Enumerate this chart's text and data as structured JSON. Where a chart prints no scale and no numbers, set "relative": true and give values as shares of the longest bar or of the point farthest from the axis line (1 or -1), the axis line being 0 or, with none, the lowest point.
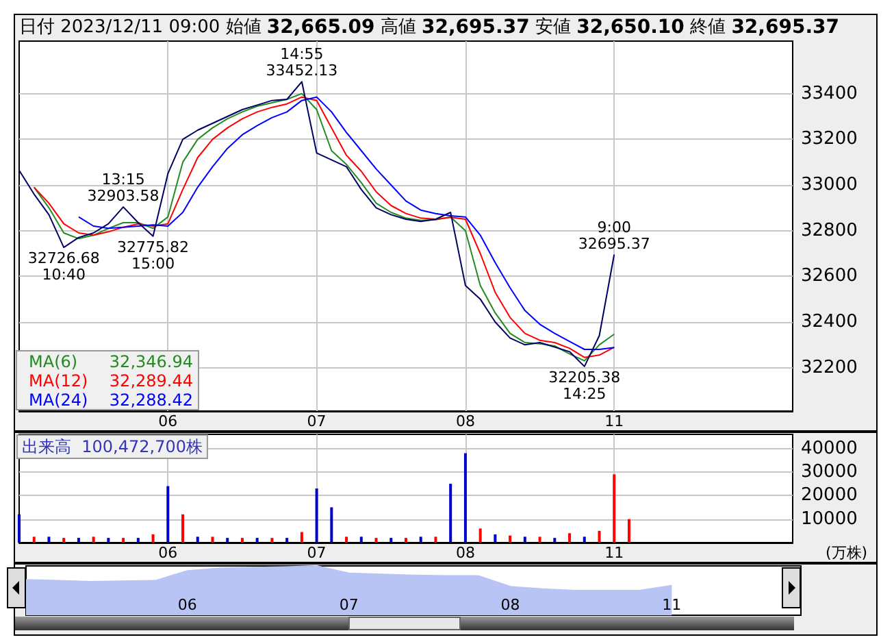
{
  "chart_data": [
    {
      "type": "line",
      "title": "日付 2023/12/11 09:00 始値 32,665.09 高値 32,695.37 安値 32,650.10 終値 32,695.37",
      "annotations": [
        "32,346.94",
        "32,289.44",
        "32,288.42",
        {
          "text": "32726.68\n10:40",
          "y": 32726.68
        },
        {
          "text": "13:15\n32903.58",
          "y": 32903.58
        },
        {
          "text": "32775.82\n15:00",
          "y": 32775.82
        },
        {
          "text": "14:55\n33452.13",
          "y": 33452.13
        },
        {
          "text": "32205.38\n14:25",
          "y": 32205.38
        },
        {
          "text": "9:00\n32695.37",
          "y": 32695.37
        }
      ],
      "categories": [
        null,
        null,
        null,
        null,
        null,
        null,
        null,
        null,
        null,
        null,
        "06",
        null,
        null,
        null,
        null,
        null,
        null,
        null,
        null,
        null,
        "07",
        null,
        null,
        null,
        null,
        null,
        null,
        null,
        null,
        null,
        "08",
        null,
        null,
        null,
        null,
        null,
        null,
        null,
        null,
        null,
        "11",
        null,
        null,
        null,
        null,
        null,
        null,
        null,
        null,
        null,
        null,
        null,
        null
      ],
      "series": [
        {
          "color": "#000066",
          "values": [
            33064,
            32960,
            32870,
            32726.68,
            32770,
            32790,
            32830,
            32903.58,
            32835,
            32775.82,
            33050,
            33200,
            33240,
            33270,
            33300,
            33330,
            33350,
            33370,
            33375,
            33452.13,
            33140,
            33110,
            33080,
            32980,
            32900,
            32870,
            32850,
            32840,
            32850,
            32880,
            32560,
            32500,
            32400,
            32330,
            32300,
            32310,
            32290,
            32270,
            32205.38,
            32340,
            32695.37,
            null,
            null,
            null,
            null,
            null,
            null,
            null,
            null,
            null,
            null,
            null,
            null
          ]
        },
        {
          "name": "MA(6)",
          "color": "#228b22",
          "values": [
            null,
            32990,
            32900,
            32790,
            32765,
            32780,
            32810,
            32835,
            32835,
            32810,
            32860,
            33100,
            33200,
            33250,
            33290,
            33320,
            33345,
            33360,
            33375,
            33400,
            33330,
            33150,
            33090,
            33010,
            32920,
            32880,
            32855,
            32845,
            32848,
            32860,
            32800,
            32560,
            32440,
            32350,
            32310,
            32305,
            32295,
            32260,
            32230,
            32300,
            32346.94,
            null,
            null,
            null,
            null,
            null,
            null,
            null,
            null,
            null,
            null,
            null,
            null
          ]
        },
        {
          "name": "MA(12)",
          "color": "#ff0000",
          "values": [
            null,
            32990,
            32920,
            32830,
            32790,
            32780,
            32795,
            32815,
            32830,
            32820,
            32830,
            32980,
            33120,
            33200,
            33250,
            33290,
            33320,
            33340,
            33355,
            33385,
            33370,
            33250,
            33130,
            33060,
            32970,
            32910,
            32875,
            32855,
            32850,
            32858,
            32850,
            32700,
            32530,
            32420,
            32350,
            32320,
            32310,
            32285,
            32245,
            32255,
            32289.44,
            null,
            null,
            null,
            null,
            null,
            null,
            null,
            null,
            null,
            null,
            null,
            null
          ]
        },
        {
          "name": "MA(24)",
          "color": "#0000ff",
          "values": [
            null,
            null,
            null,
            null,
            32860,
            32820,
            32810,
            32815,
            32820,
            32825,
            32820,
            32880,
            32990,
            33080,
            33160,
            33220,
            33260,
            33295,
            33320,
            33370,
            33385,
            33320,
            33230,
            33150,
            33070,
            33000,
            32930,
            32890,
            32875,
            32865,
            32860,
            32780,
            32660,
            32550,
            32450,
            32390,
            32350,
            32315,
            32280,
            32280,
            32288.42,
            null,
            null,
            null,
            null,
            null,
            null,
            null,
            null,
            null,
            null,
            null,
            null
          ]
        }
      ],
      "ylim": [
        32010,
        33630
      ],
      "yticks": [
        32200,
        32400,
        32600,
        32800,
        33000,
        33200,
        33400
      ],
      "grid": true,
      "legend": "bottom left",
      "marker": "none",
      "line_style": "solid"
    },
    {
      "type": "bar",
      "title": "出来高  100,472,700株",
      "ylabel": "(万株)",
      "categories": [
        null,
        null,
        null,
        null,
        null,
        null,
        null,
        null,
        null,
        null,
        "06",
        null,
        null,
        null,
        null,
        null,
        null,
        null,
        null,
        null,
        "07",
        null,
        null,
        null,
        null,
        null,
        null,
        null,
        null,
        null,
        "08",
        null,
        null,
        null,
        null,
        null,
        null,
        null,
        null,
        null,
        "11",
        null,
        null,
        null,
        null,
        null,
        null,
        null,
        null,
        null,
        null,
        null,
        null
      ],
      "values": [
        12000,
        2500,
        2500,
        2000,
        2000,
        2500,
        2000,
        2000,
        2000,
        3500,
        24000,
        12000,
        2500,
        2500,
        2000,
        2000,
        2000,
        2000,
        2000,
        4500,
        23000,
        15000,
        2500,
        2500,
        2000,
        2000,
        2000,
        2500,
        2500,
        25000,
        38000,
        6000,
        3500,
        3000,
        2500,
        2500,
        2000,
        4000,
        2500,
        5000,
        29000,
        10000,
        null,
        null,
        null,
        null,
        null,
        null,
        null,
        null,
        null,
        null,
        null
      ],
      "colors": [
        "#0000cc",
        "#ff0000",
        "#0000cc",
        "#ff0000",
        "#0000cc",
        "#ff0000",
        "#0000cc",
        "#ff0000",
        "#0000cc",
        "#ff0000",
        "#0000cc",
        "#ff0000",
        "#0000cc",
        "#ff0000",
        "#0000cc",
        "#ff0000",
        "#0000cc",
        "#ff0000",
        "#0000cc",
        "#ff0000",
        "#0000cc",
        "#0000cc",
        "#ff0000",
        "#0000cc",
        "#ff0000",
        "#0000cc",
        "#ff0000",
        "#0000cc",
        "#ff0000",
        "#0000cc",
        "#0000cc",
        "#ff0000",
        "#0000cc",
        "#ff0000",
        "#0000cc",
        "#ff0000",
        "#0000cc",
        "#ff0000",
        "#0000cc",
        "#ff0000",
        "#ff0000",
        "#ff0000",
        "#0000cc",
        "#0000cc",
        "#0000cc",
        "#0000cc",
        "#0000cc",
        "#0000cc",
        "#0000cc",
        "#0000cc",
        "#0000cc",
        "#0000cc",
        "#0000cc"
      ],
      "ylim": [
        0,
        46000
      ],
      "yticks": [
        10000,
        20000,
        30000,
        40000
      ],
      "grid": true
    },
    {
      "type": "area",
      "relative": true,
      "color": "#b8c4f4",
      "categories": [
        null,
        null,
        null,
        null,
        null,
        "06",
        null,
        null,
        null,
        null,
        "07",
        null,
        null,
        null,
        null,
        "08",
        null,
        null,
        null,
        null,
        "11",
        null,
        null,
        null,
        null
      ],
      "values": [
        0.72,
        0.7,
        0.68,
        0.69,
        0.7,
        0.9,
        0.95,
        0.97,
        0.98,
        1.0,
        0.85,
        0.83,
        0.81,
        0.8,
        0.8,
        0.58,
        0.53,
        0.5,
        0.5,
        0.5,
        0.6,
        null,
        null,
        null,
        null
      ]
    }
  ]
}
